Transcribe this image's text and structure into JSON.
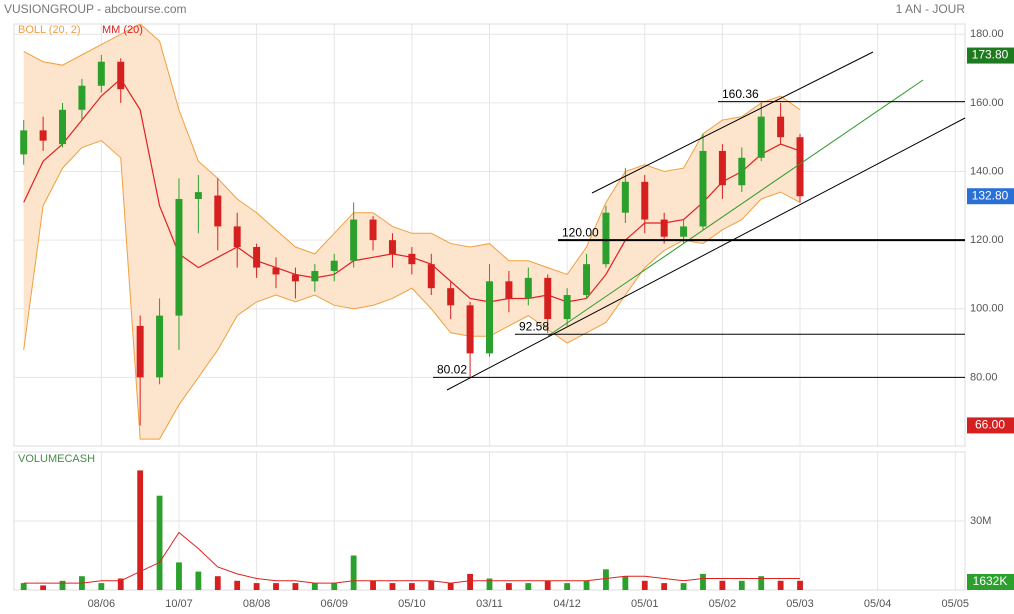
{
  "header": {
    "title": "VUSIONGROUP - abcbourse.com",
    "period": "1 AN - JOUR"
  },
  "chart_data": [
    {
      "type": "candlestick",
      "ylim": [
        60,
        183
      ],
      "yticks": [
        {
          "value": 80,
          "label": "80.00"
        },
        {
          "value": 100,
          "label": "100.00"
        },
        {
          "value": 120,
          "label": "120.00"
        },
        {
          "value": 140,
          "label": "140.00"
        },
        {
          "value": 160,
          "label": "160.00"
        },
        {
          "value": 180,
          "label": "180.00"
        }
      ],
      "grid": true,
      "up_color": "#2ca02c",
      "down_color": "#d62020",
      "open": [
        145,
        152,
        148,
        158,
        165,
        172,
        95,
        80,
        98,
        132,
        133,
        124,
        118,
        112,
        110,
        108,
        111,
        114,
        126,
        120,
        116,
        113,
        106,
        101,
        87,
        108,
        103,
        109,
        97,
        104,
        113,
        128,
        137,
        126,
        121,
        124,
        146,
        136,
        144,
        156,
        150
      ],
      "high": [
        155,
        156,
        160,
        167,
        174,
        173,
        98,
        103,
        138,
        139,
        138,
        128,
        119,
        115,
        112,
        113,
        116,
        131,
        127,
        122,
        118,
        116,
        108,
        102,
        113,
        111,
        112,
        110,
        106,
        116,
        130,
        141,
        139,
        128,
        126,
        151,
        148,
        147,
        160,
        160,
        151
      ],
      "low": [
        142,
        146,
        147,
        155,
        163,
        160,
        66,
        78,
        88,
        122,
        117,
        112,
        109,
        106,
        103,
        105,
        108,
        112,
        117,
        112,
        110,
        104,
        97,
        80,
        86,
        99,
        101,
        93,
        95,
        103,
        112,
        125,
        122,
        119,
        119,
        123,
        132,
        134,
        143,
        148,
        131
      ],
      "close": [
        152,
        149,
        158,
        165,
        172,
        164,
        80,
        98,
        132,
        134,
        124,
        118,
        112,
        110,
        108,
        111,
        114,
        126,
        120,
        116,
        113,
        106,
        101,
        87,
        108,
        103,
        109,
        97,
        104,
        113,
        128,
        137,
        126,
        121,
        124,
        146,
        136,
        144,
        156,
        150,
        132.8
      ],
      "series": [
        {
          "name": "BOLL (20, 2)",
          "color": "#f0a040",
          "fill": "#fde4cc",
          "upper": [
            175,
            172,
            171,
            174,
            177,
            180,
            183,
            178,
            158,
            143,
            138,
            132,
            128,
            123,
            118,
            116,
            122,
            128,
            128,
            124,
            122,
            122,
            119,
            118,
            119,
            114,
            114,
            112,
            110,
            118,
            131,
            140,
            142,
            140,
            141,
            151,
            155,
            156,
            160,
            162,
            158
          ],
          "lower": [
            88,
            130,
            141,
            147,
            149,
            144,
            62,
            62,
            72,
            80,
            88,
            98,
            102,
            104,
            102,
            104,
            101,
            100,
            101,
            103,
            106,
            100,
            93,
            92,
            92,
            95,
            98,
            94,
            90,
            93,
            96,
            104,
            112,
            117,
            120,
            119,
            123,
            126,
            132,
            134,
            131
          ]
        },
        {
          "name": "MM (20)",
          "color": "#e02020",
          "values": [
            131,
            143,
            148,
            155,
            162,
            167,
            158,
            130,
            116,
            112,
            115,
            118,
            114,
            112,
            110,
            109,
            110,
            114,
            115,
            116,
            115,
            113,
            108,
            103,
            102,
            103,
            103,
            104,
            102,
            103,
            110,
            120,
            125,
            125,
            126,
            131,
            137,
            140,
            145,
            148,
            146
          ]
        }
      ],
      "levels": [
        {
          "value": 160.36,
          "label": "160.36"
        },
        {
          "value": 120,
          "label": "120.00"
        },
        {
          "value": 92.58,
          "label": "92.58"
        },
        {
          "value": 80.02,
          "label": "80.02"
        }
      ],
      "markers": [
        {
          "value": 173.8,
          "label": "173.80",
          "color": "#1e7a1e"
        },
        {
          "value": 132.8,
          "label": "132.80",
          "color": "#2a6fd6"
        },
        {
          "value": 66,
          "label": "66.00",
          "color": "#d42020"
        }
      ]
    },
    {
      "type": "bar",
      "title": "VOLUMECASH",
      "categories": [
        null,
        null,
        null,
        null,
        "08/06",
        null,
        null,
        null,
        "10/07",
        null,
        null,
        null,
        "08/08",
        null,
        null,
        null,
        "06/09",
        null,
        null,
        null,
        "05/10",
        null,
        null,
        null,
        "03/11",
        null,
        null,
        null,
        "04/12",
        null,
        null,
        null,
        "05/01",
        null,
        null,
        null,
        "05/02",
        null,
        null,
        null,
        "05/03",
        null,
        null,
        null,
        "05/04",
        null,
        null,
        null,
        "05/05"
      ],
      "values": [
        3,
        2,
        4,
        6,
        3,
        5,
        52,
        41,
        12,
        8,
        6,
        4,
        3,
        3,
        3,
        3,
        3,
        15,
        4,
        3,
        3,
        4,
        3,
        7,
        5,
        3,
        3,
        4,
        3,
        4,
        9,
        6,
        4,
        3,
        3,
        7,
        4,
        4,
        6,
        4,
        4,
        null,
        null,
        null,
        null,
        null,
        null,
        null,
        null
      ],
      "ma_values": [
        3,
        3,
        3,
        3,
        4,
        4,
        8,
        12,
        25,
        18,
        10,
        7,
        5,
        4,
        4,
        3,
        3,
        4,
        4,
        4,
        4,
        4,
        3,
        4,
        4,
        4,
        4,
        4,
        4,
        4,
        5,
        6,
        6,
        5,
        4,
        5,
        5,
        5,
        5,
        5,
        5,
        null,
        null,
        null,
        null,
        null,
        null,
        null,
        null
      ],
      "ma_color": "#e02020",
      "ylim": [
        0,
        60
      ],
      "yticks": [
        {
          "value": 30,
          "label": "30M"
        }
      ],
      "markers": [
        {
          "value": 1.632,
          "label": "1632K",
          "color": "#2ca02c"
        }
      ]
    }
  ]
}
